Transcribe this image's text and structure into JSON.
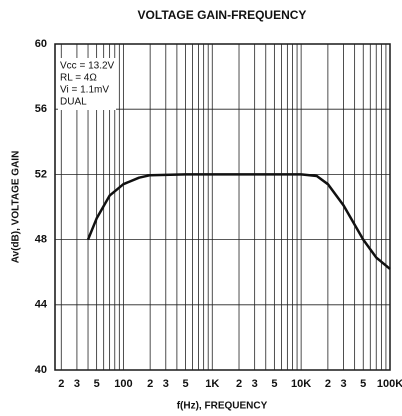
{
  "chart_data": {
    "type": "line",
    "title": "VOLTAGE GAIN-FREQUENCY",
    "x_label": "f(Hz), FREQUENCY",
    "y_label": "Av(dB), VOLTAGE GAIN",
    "annotations": [
      "Vcc = 13.2V",
      "RL = 4Ω",
      "Vi = 1.1mV",
      "DUAL"
    ],
    "x_log": true,
    "grid": true,
    "xlim": [
      17,
      100000
    ],
    "ylim": [
      40,
      60
    ],
    "yticks": [
      40,
      44,
      48,
      52,
      56,
      60
    ],
    "xticks": [
      {
        "value": 20,
        "label": "2"
      },
      {
        "value": 30,
        "label": "3"
      },
      {
        "value": 50,
        "label": "5"
      },
      100,
      {
        "value": 200,
        "label": "2"
      },
      {
        "value": 300,
        "label": "3"
      },
      {
        "value": 500,
        "label": "5"
      },
      {
        "value": 1000,
        "label": "1K"
      },
      {
        "value": 2000,
        "label": "2"
      },
      {
        "value": 3000,
        "label": "3"
      },
      {
        "value": 5000,
        "label": "5"
      },
      {
        "value": 10000,
        "label": "10K"
      },
      {
        "value": 20000,
        "label": "2"
      },
      {
        "value": 30000,
        "label": "3"
      },
      {
        "value": 50000,
        "label": "5"
      },
      {
        "value": 100000,
        "label": "100K"
      }
    ],
    "x_minor_ticks": [
      40,
      60,
      70,
      80,
      90,
      400,
      600,
      700,
      800,
      900,
      4000,
      6000,
      7000,
      8000,
      9000,
      40000,
      60000,
      70000,
      80000,
      90000
    ],
    "series": [
      {
        "color": "#111111",
        "x": [
          40,
          50,
          70,
          100,
          150,
          200,
          500,
          1000,
          5000,
          10000,
          15000,
          20000,
          30000,
          50000,
          70000,
          100000
        ],
        "values": [
          48,
          49.3,
          50.7,
          51.4,
          51.8,
          51.95,
          52,
          52,
          52,
          52,
          51.9,
          51.4,
          50.1,
          48,
          46.9,
          46.2
        ]
      }
    ]
  }
}
